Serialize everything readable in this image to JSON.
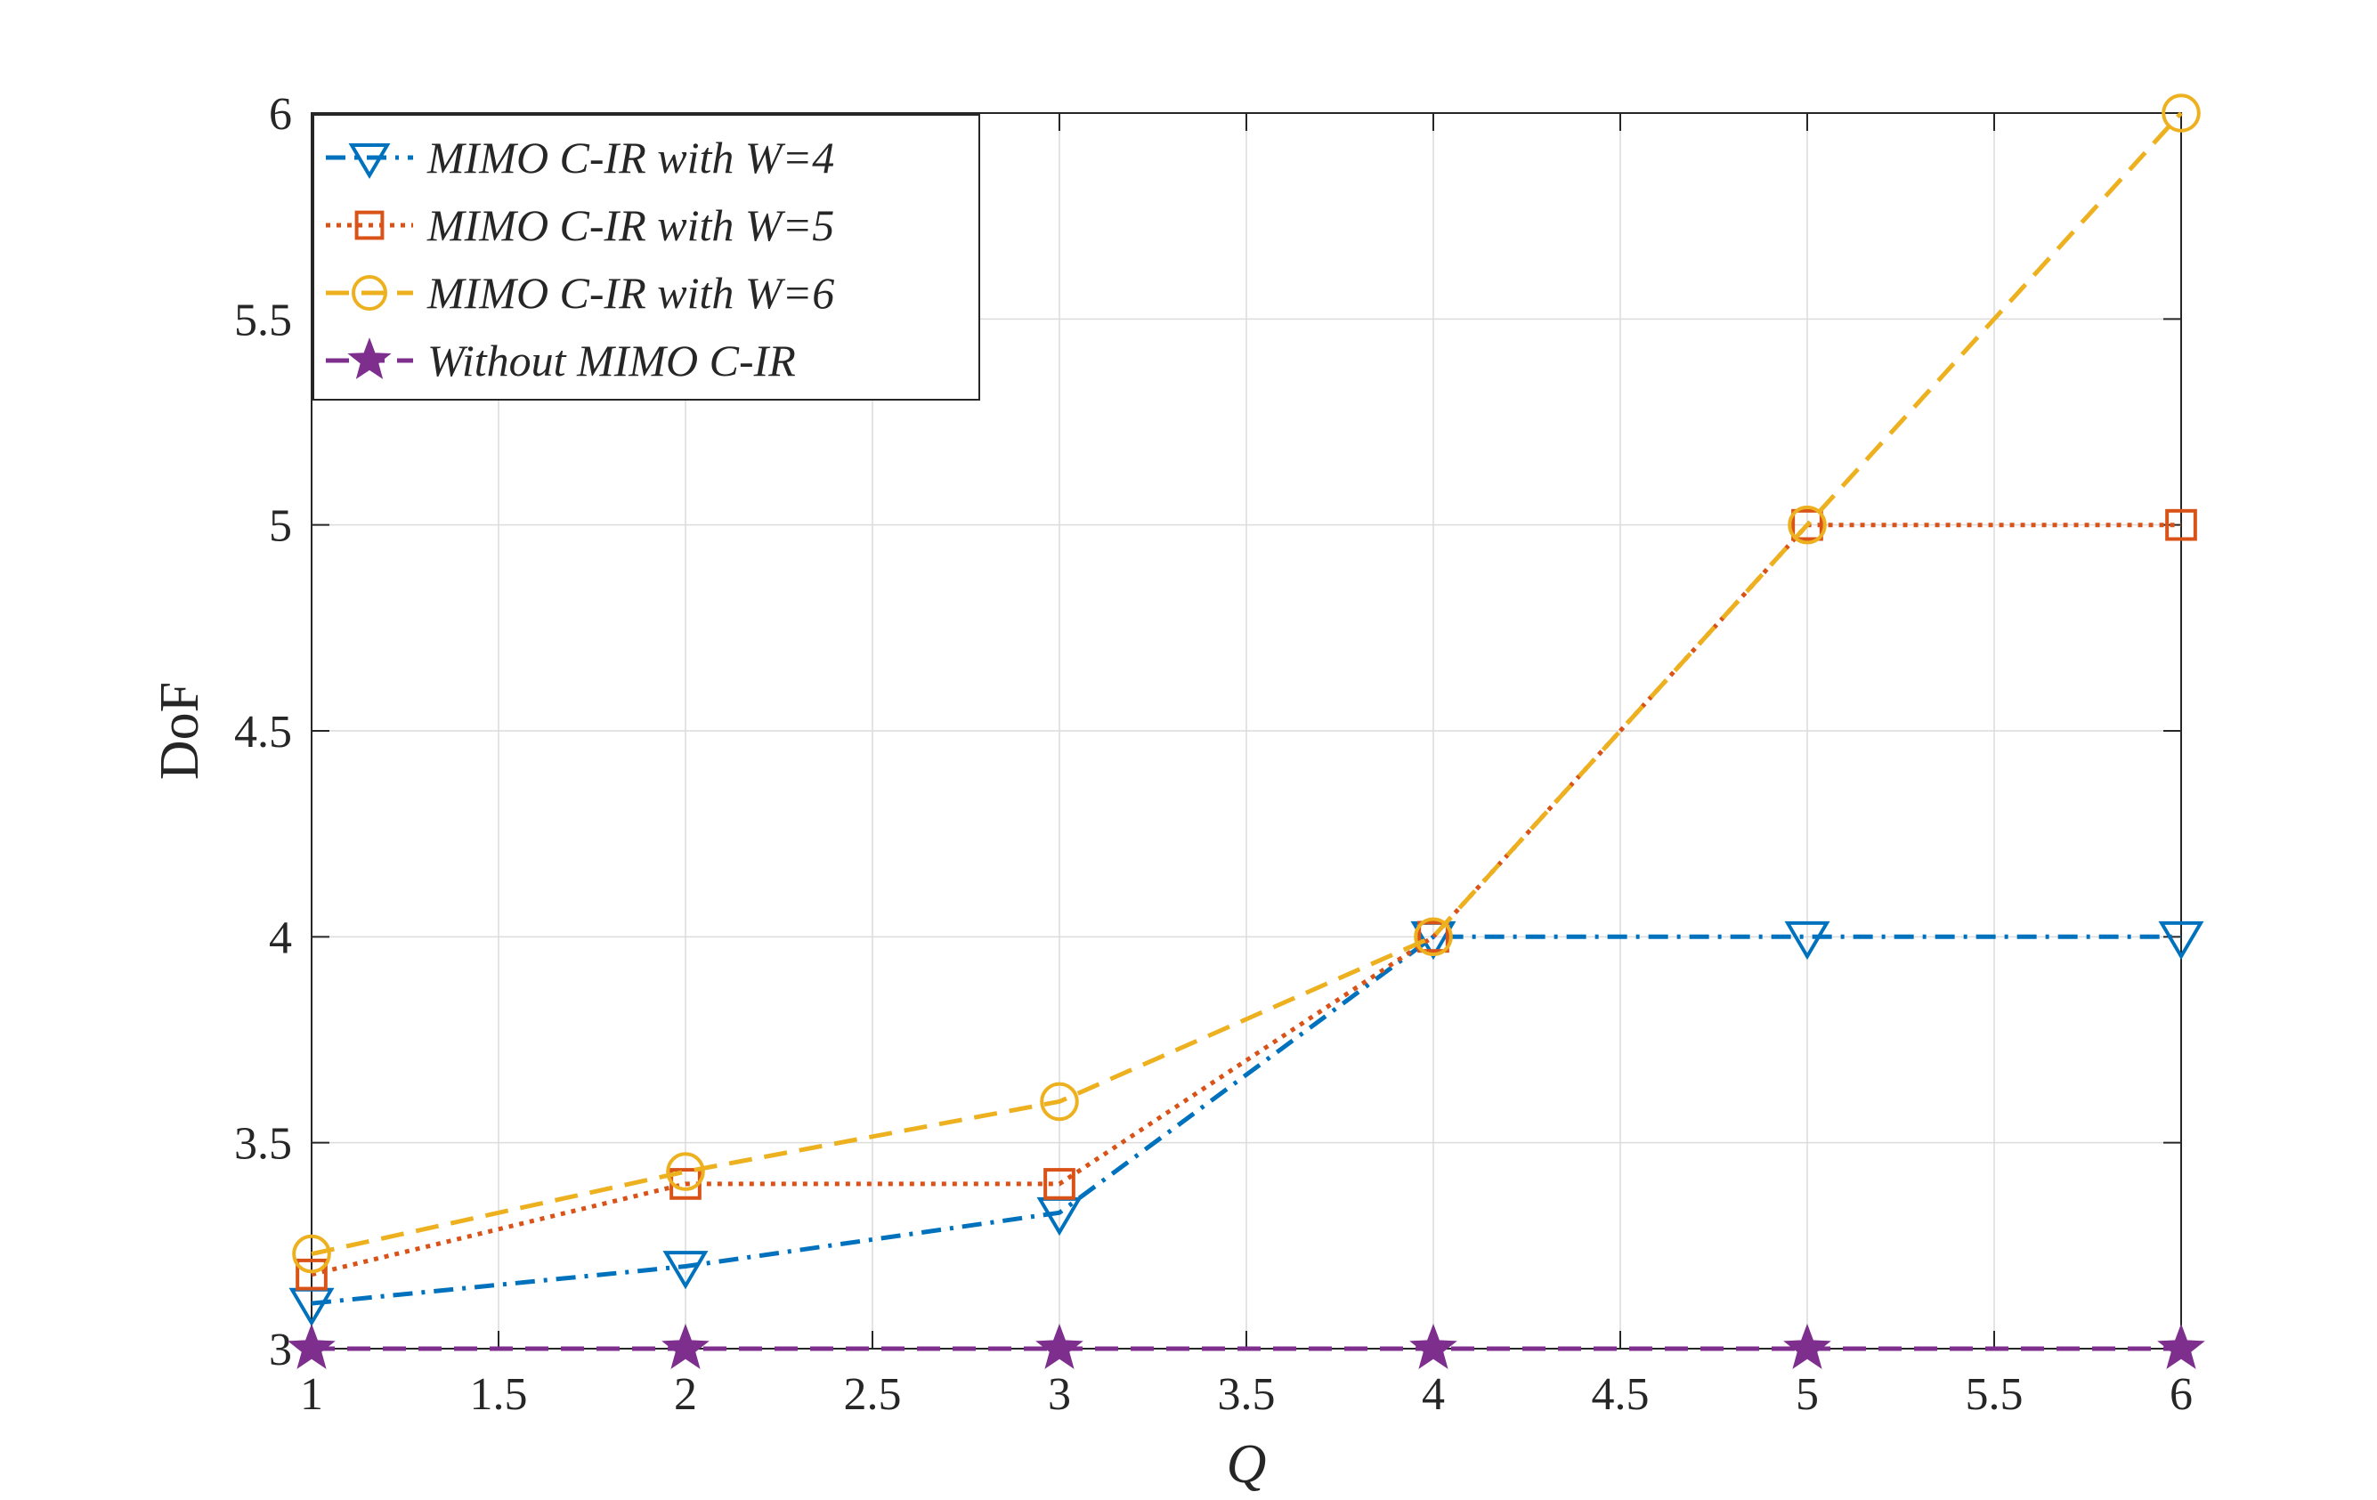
{
  "chart_data": {
    "type": "line",
    "xlabel": "Q",
    "ylabel": "DoF",
    "xlim": [
      1,
      6
    ],
    "ylim": [
      3,
      6
    ],
    "xticks": [
      "1",
      "1.5",
      "2",
      "2.5",
      "3",
      "3.5",
      "4",
      "4.5",
      "5",
      "5.5",
      "6"
    ],
    "yticks": [
      "3",
      "3.5",
      "4",
      "4.5",
      "5",
      "5.5",
      "6"
    ],
    "grid": true,
    "legend_position": "top-left",
    "x": [
      1,
      2,
      3,
      4,
      5,
      6
    ],
    "series": [
      {
        "name": "MIMO C-IR with W=4",
        "values": [
          3.11,
          3.2,
          3.33,
          4.0,
          4.0,
          4.0
        ],
        "color": "#0072BD",
        "line_style": "dash-dot",
        "marker": "triangle-down"
      },
      {
        "name": "MIMO C-IR with W=5",
        "values": [
          3.18,
          3.4,
          3.4,
          4.0,
          5.0,
          5.0
        ],
        "color": "#D95319",
        "line_style": "dotted",
        "marker": "square"
      },
      {
        "name": "MIMO C-IR with W=6",
        "values": [
          3.23,
          3.43,
          3.6,
          4.0,
          5.0,
          6.0
        ],
        "color": "#EDB120",
        "line_style": "dashed",
        "marker": "circle"
      },
      {
        "name": "Without MIMO C-IR",
        "values": [
          3.0,
          3.0,
          3.0,
          3.0,
          3.0,
          3.0
        ],
        "color": "#7E2F8E",
        "line_style": "dashed",
        "marker": "star"
      }
    ]
  }
}
